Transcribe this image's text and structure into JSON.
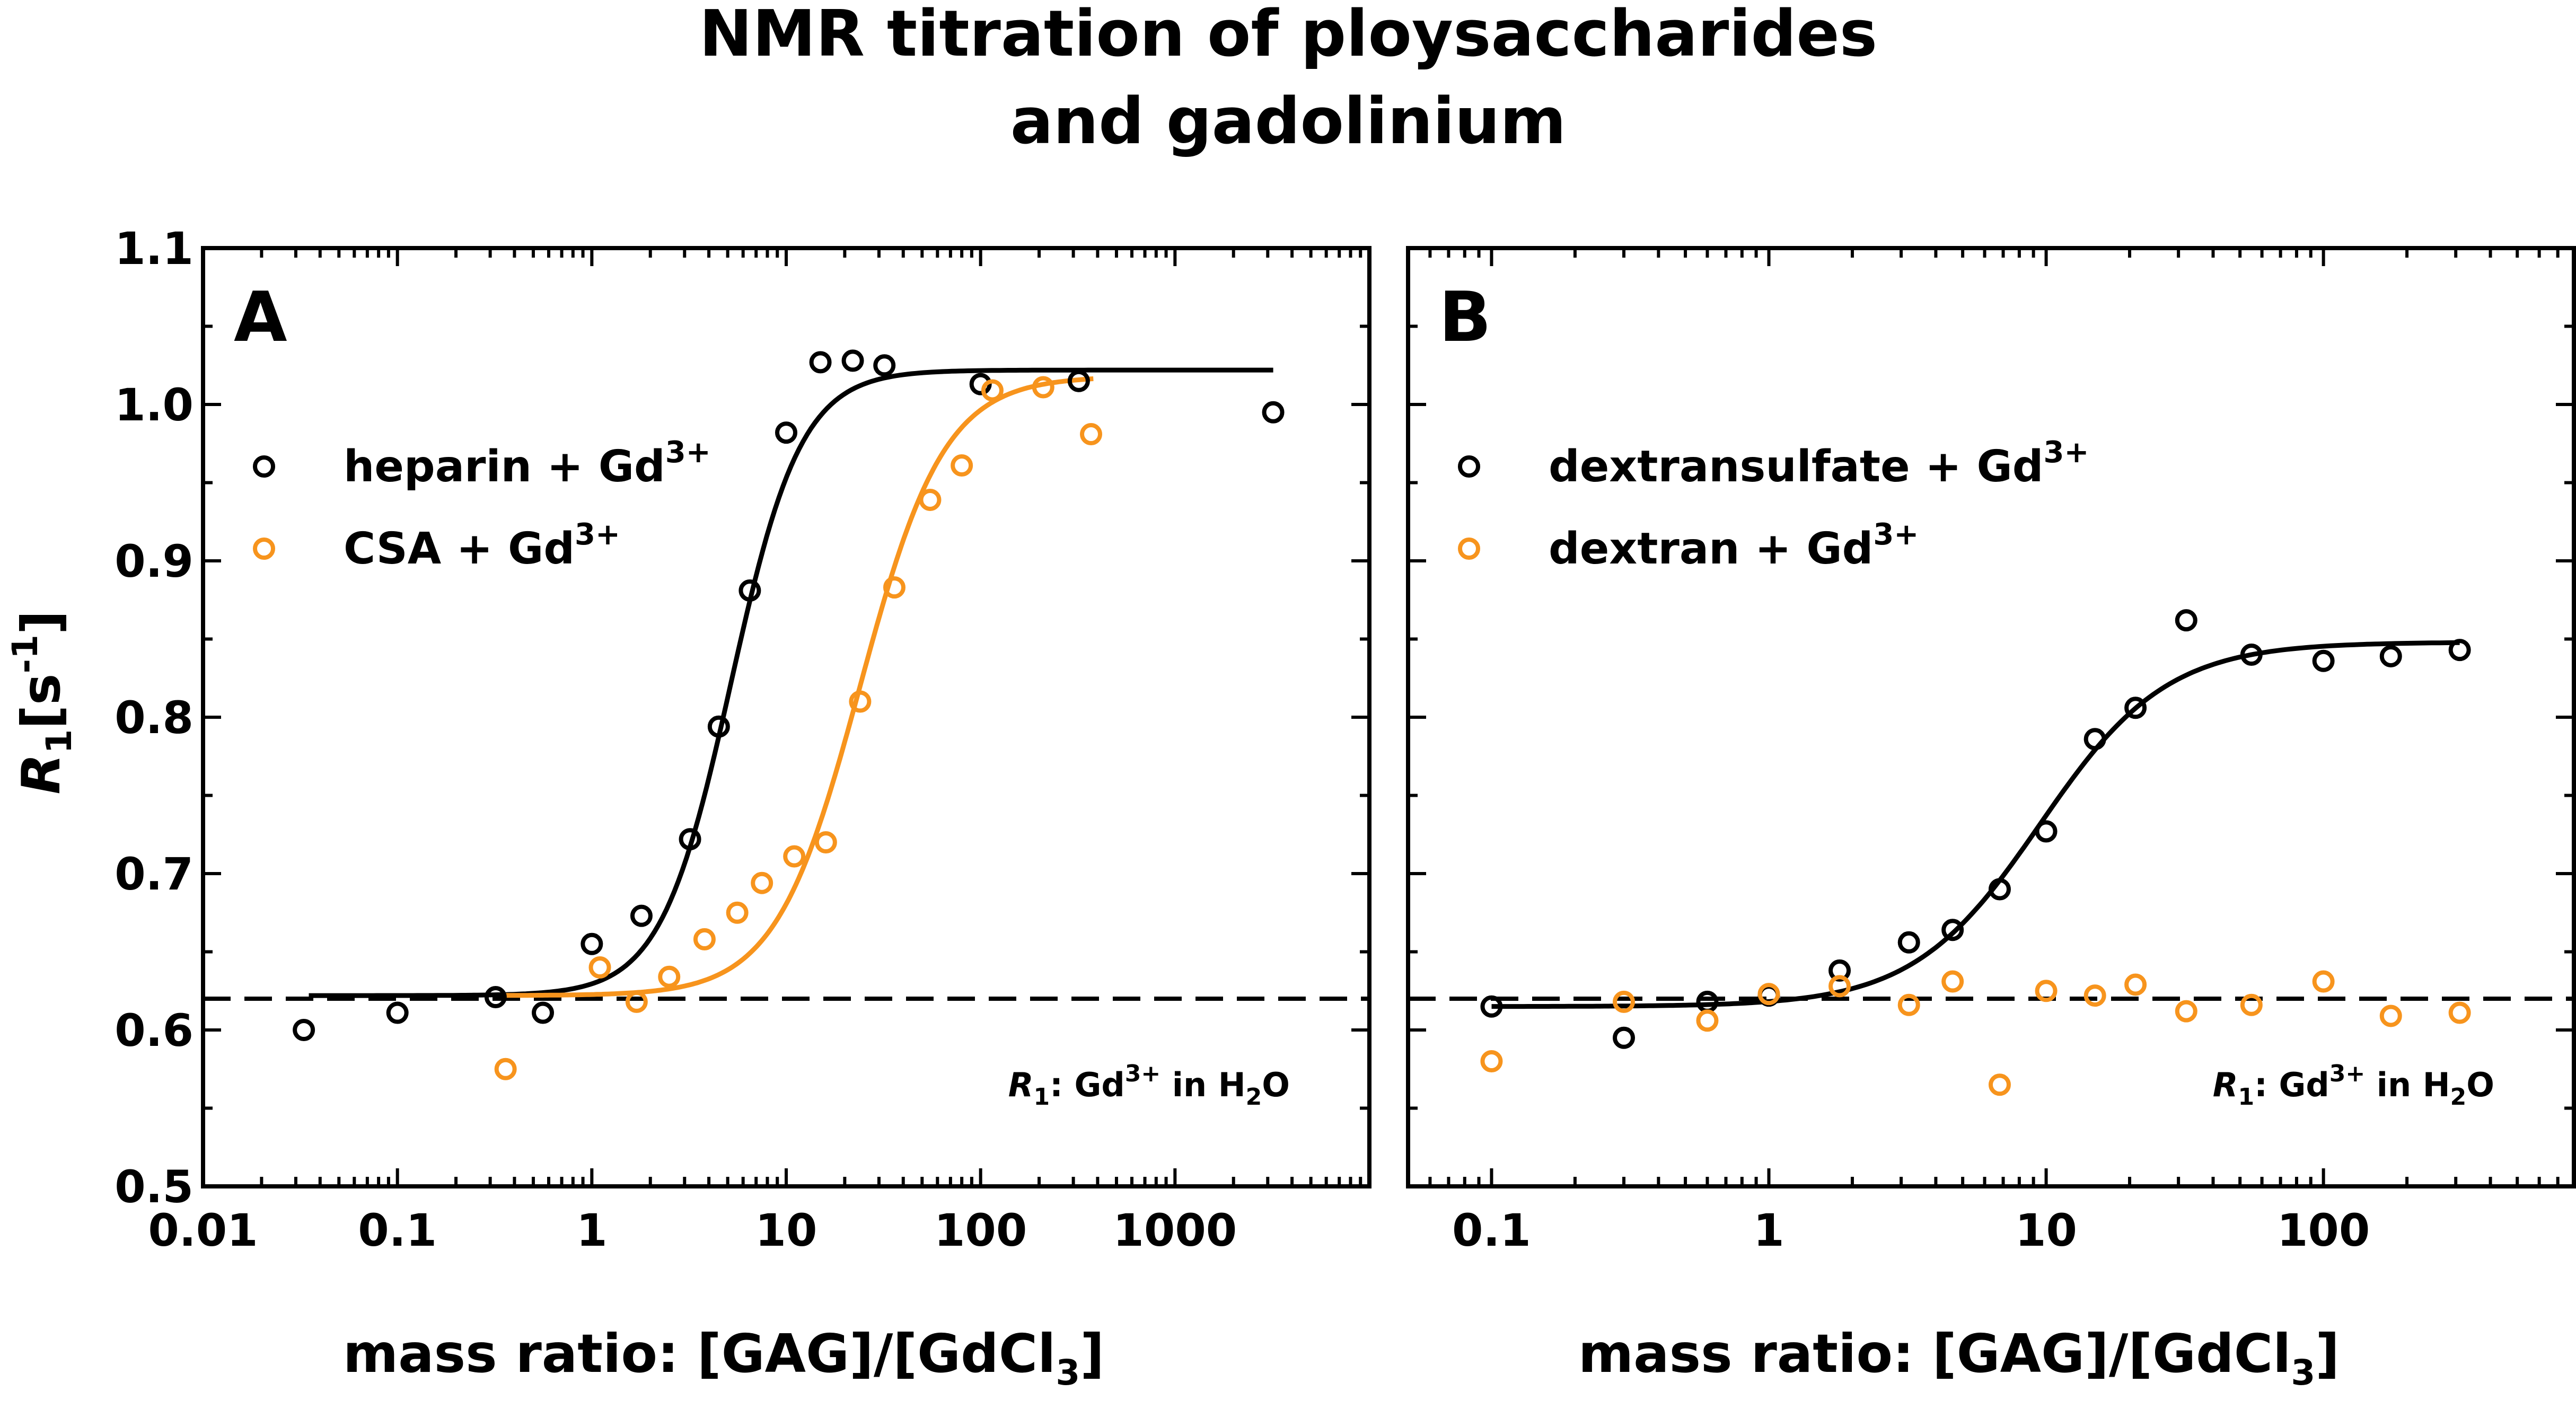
{
  "title": {
    "line1": "NMR titration of ploysaccharides",
    "line2": "and gadolinium"
  },
  "ylabel": {
    "sym": "R",
    "sub": "1",
    "unit_open": "[s",
    "unit_sup": "-1",
    "unit_close": "]"
  },
  "xlabel": {
    "main": "mass ratio: [GAG]/[GdCl",
    "sub": "3",
    "close": "]"
  },
  "ref_line": {
    "y": 0.62,
    "label": {
      "sym": "R",
      "sub": "1",
      "colon": ": Gd",
      "sup": "3+",
      "mid": " in H",
      "sub2": "2",
      "end": "O"
    }
  },
  "colors": {
    "black": "#000000",
    "orange": "#F7941D"
  },
  "chart_data": [
    {
      "type": "scatter",
      "panel": "A",
      "xscale": "log",
      "xlim": [
        0.01,
        10000
      ],
      "ylim": [
        0.5,
        1.1
      ],
      "ylabel": "R1[s-1]",
      "xlabel": "mass ratio: [GAG]/[GdCl3]",
      "xticks": [
        {
          "v": 0.01,
          "label": "0.01"
        },
        {
          "v": 0.1,
          "label": "0.1"
        },
        {
          "v": 1,
          "label": "1"
        },
        {
          "v": 10,
          "label": "10"
        },
        {
          "v": 100,
          "label": "100"
        },
        {
          "v": 1000,
          "label": "1000"
        }
      ],
      "yticks": [
        {
          "v": 0.5,
          "label": "0.5"
        },
        {
          "v": 0.6,
          "label": "0.6"
        },
        {
          "v": 0.7,
          "label": "0.7"
        },
        {
          "v": 0.8,
          "label": "0.8"
        },
        {
          "v": 0.9,
          "label": "0.9"
        },
        {
          "v": 1.0,
          "label": "1.0"
        },
        {
          "v": 1.1,
          "label": "1.1"
        }
      ],
      "legend_position": "upper-left",
      "series": [
        {
          "name": "heparin",
          "legend": "heparin + Gd",
          "sup": "3+",
          "color": "#000000",
          "x": [
            0.033,
            0.1,
            0.32,
            0.56,
            1.0,
            1.8,
            3.2,
            4.5,
            6.5,
            10,
            15,
            22,
            32,
            100,
            320,
            3200
          ],
          "y": [
            0.6,
            0.611,
            0.621,
            0.611,
            0.655,
            0.673,
            0.722,
            0.794,
            0.881,
            0.982,
            1.027,
            1.028,
            1.025,
            1.013,
            1.015,
            0.995
          ],
          "fit": {
            "bottom": 0.622,
            "top": 1.022,
            "x0": 5.2,
            "hill": 2.4,
            "xrange": [
              0.035,
              3200
            ]
          }
        },
        {
          "name": "CSA",
          "legend": "CSA + Gd",
          "sup": "3+",
          "color": "#F7941D",
          "x": [
            0.36,
            1.1,
            1.7,
            2.5,
            3.8,
            5.6,
            7.5,
            11,
            16,
            24,
            36,
            55,
            80,
            115,
            210,
            370
          ],
          "y": [
            0.575,
            0.64,
            0.618,
            0.634,
            0.658,
            0.675,
            0.694,
            0.711,
            0.72,
            0.81,
            0.883,
            0.939,
            0.961,
            1.009,
            1.011,
            0.981
          ],
          "fit": {
            "bottom": 0.622,
            "top": 1.018,
            "x0": 24,
            "hill": 2.0,
            "xrange": [
              0.35,
              380
            ]
          }
        }
      ]
    },
    {
      "type": "scatter",
      "panel": "B",
      "xscale": "log",
      "xlim": [
        0.05,
        800
      ],
      "ylim": [
        0.5,
        1.1
      ],
      "xticks": [
        {
          "v": 0.1,
          "label": "0.1"
        },
        {
          "v": 1,
          "label": "1"
        },
        {
          "v": 10,
          "label": "10"
        },
        {
          "v": 100,
          "label": "100"
        }
      ],
      "legend_position": "upper-left",
      "series": [
        {
          "name": "dextransulfate",
          "legend": "dextransulfate + Gd",
          "sup": "3+",
          "color": "#000000",
          "x": [
            0.1,
            0.3,
            0.6,
            1.0,
            1.8,
            3.2,
            4.6,
            6.8,
            10,
            15,
            21,
            32,
            55,
            100,
            175,
            310
          ],
          "y": [
            0.615,
            0.595,
            0.618,
            0.622,
            0.638,
            0.656,
            0.664,
            0.69,
            0.727,
            0.786,
            0.806,
            0.862,
            0.84,
            0.836,
            0.839,
            0.843
          ],
          "fit": {
            "bottom": 0.615,
            "top": 0.848,
            "x0": 9.5,
            "hill": 1.9,
            "xrange": [
              0.1,
              310
            ]
          }
        },
        {
          "name": "dextran",
          "legend": "dextran + Gd",
          "sup": "3+",
          "color": "#F7941D",
          "x": [
            0.1,
            0.3,
            0.6,
            1.0,
            1.8,
            3.2,
            4.6,
            6.8,
            10,
            15,
            21,
            32,
            55,
            100,
            175,
            310
          ],
          "y": [
            0.58,
            0.618,
            0.606,
            0.623,
            0.628,
            0.616,
            0.631,
            0.565,
            0.625,
            0.622,
            0.629,
            0.612,
            0.616,
            0.631,
            0.609,
            0.611
          ]
        }
      ]
    }
  ]
}
